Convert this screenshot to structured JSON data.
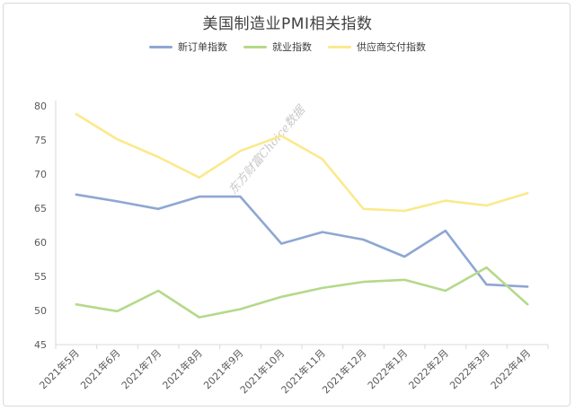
{
  "watermark": "东方财富Choice数据",
  "chart_data": {
    "type": "line",
    "title": "美国制造业PMI相关指数",
    "categories": [
      "2021年5月",
      "2021年6月",
      "2021年7月",
      "2021年8月",
      "2021年9月",
      "2021年10月",
      "2021年11月",
      "2021年12月",
      "2022年1月",
      "2022年2月",
      "2022年3月",
      "2022年4月"
    ],
    "series": [
      {
        "name": "新订单指数",
        "color": "#8ea7d3",
        "values": [
          67.0,
          66.0,
          64.9,
          66.7,
          66.7,
          59.8,
          61.5,
          60.4,
          57.9,
          61.7,
          53.8,
          53.5
        ]
      },
      {
        "name": "就业指数",
        "color": "#b5d98b",
        "values": [
          50.9,
          49.9,
          52.9,
          49.0,
          50.2,
          52.0,
          53.3,
          54.2,
          54.5,
          52.9,
          56.3,
          50.9
        ]
      },
      {
        "name": "供应商交付指数",
        "color": "#fbe98c",
        "values": [
          78.8,
          75.1,
          72.5,
          69.5,
          73.4,
          75.6,
          72.2,
          64.9,
          64.6,
          66.1,
          65.4,
          67.2
        ]
      }
    ],
    "yticks": [
      45,
      50,
      55,
      60,
      65,
      70,
      75,
      80
    ],
    "ylim": [
      45,
      80
    ],
    "grid": false,
    "legend_position": "top"
  }
}
